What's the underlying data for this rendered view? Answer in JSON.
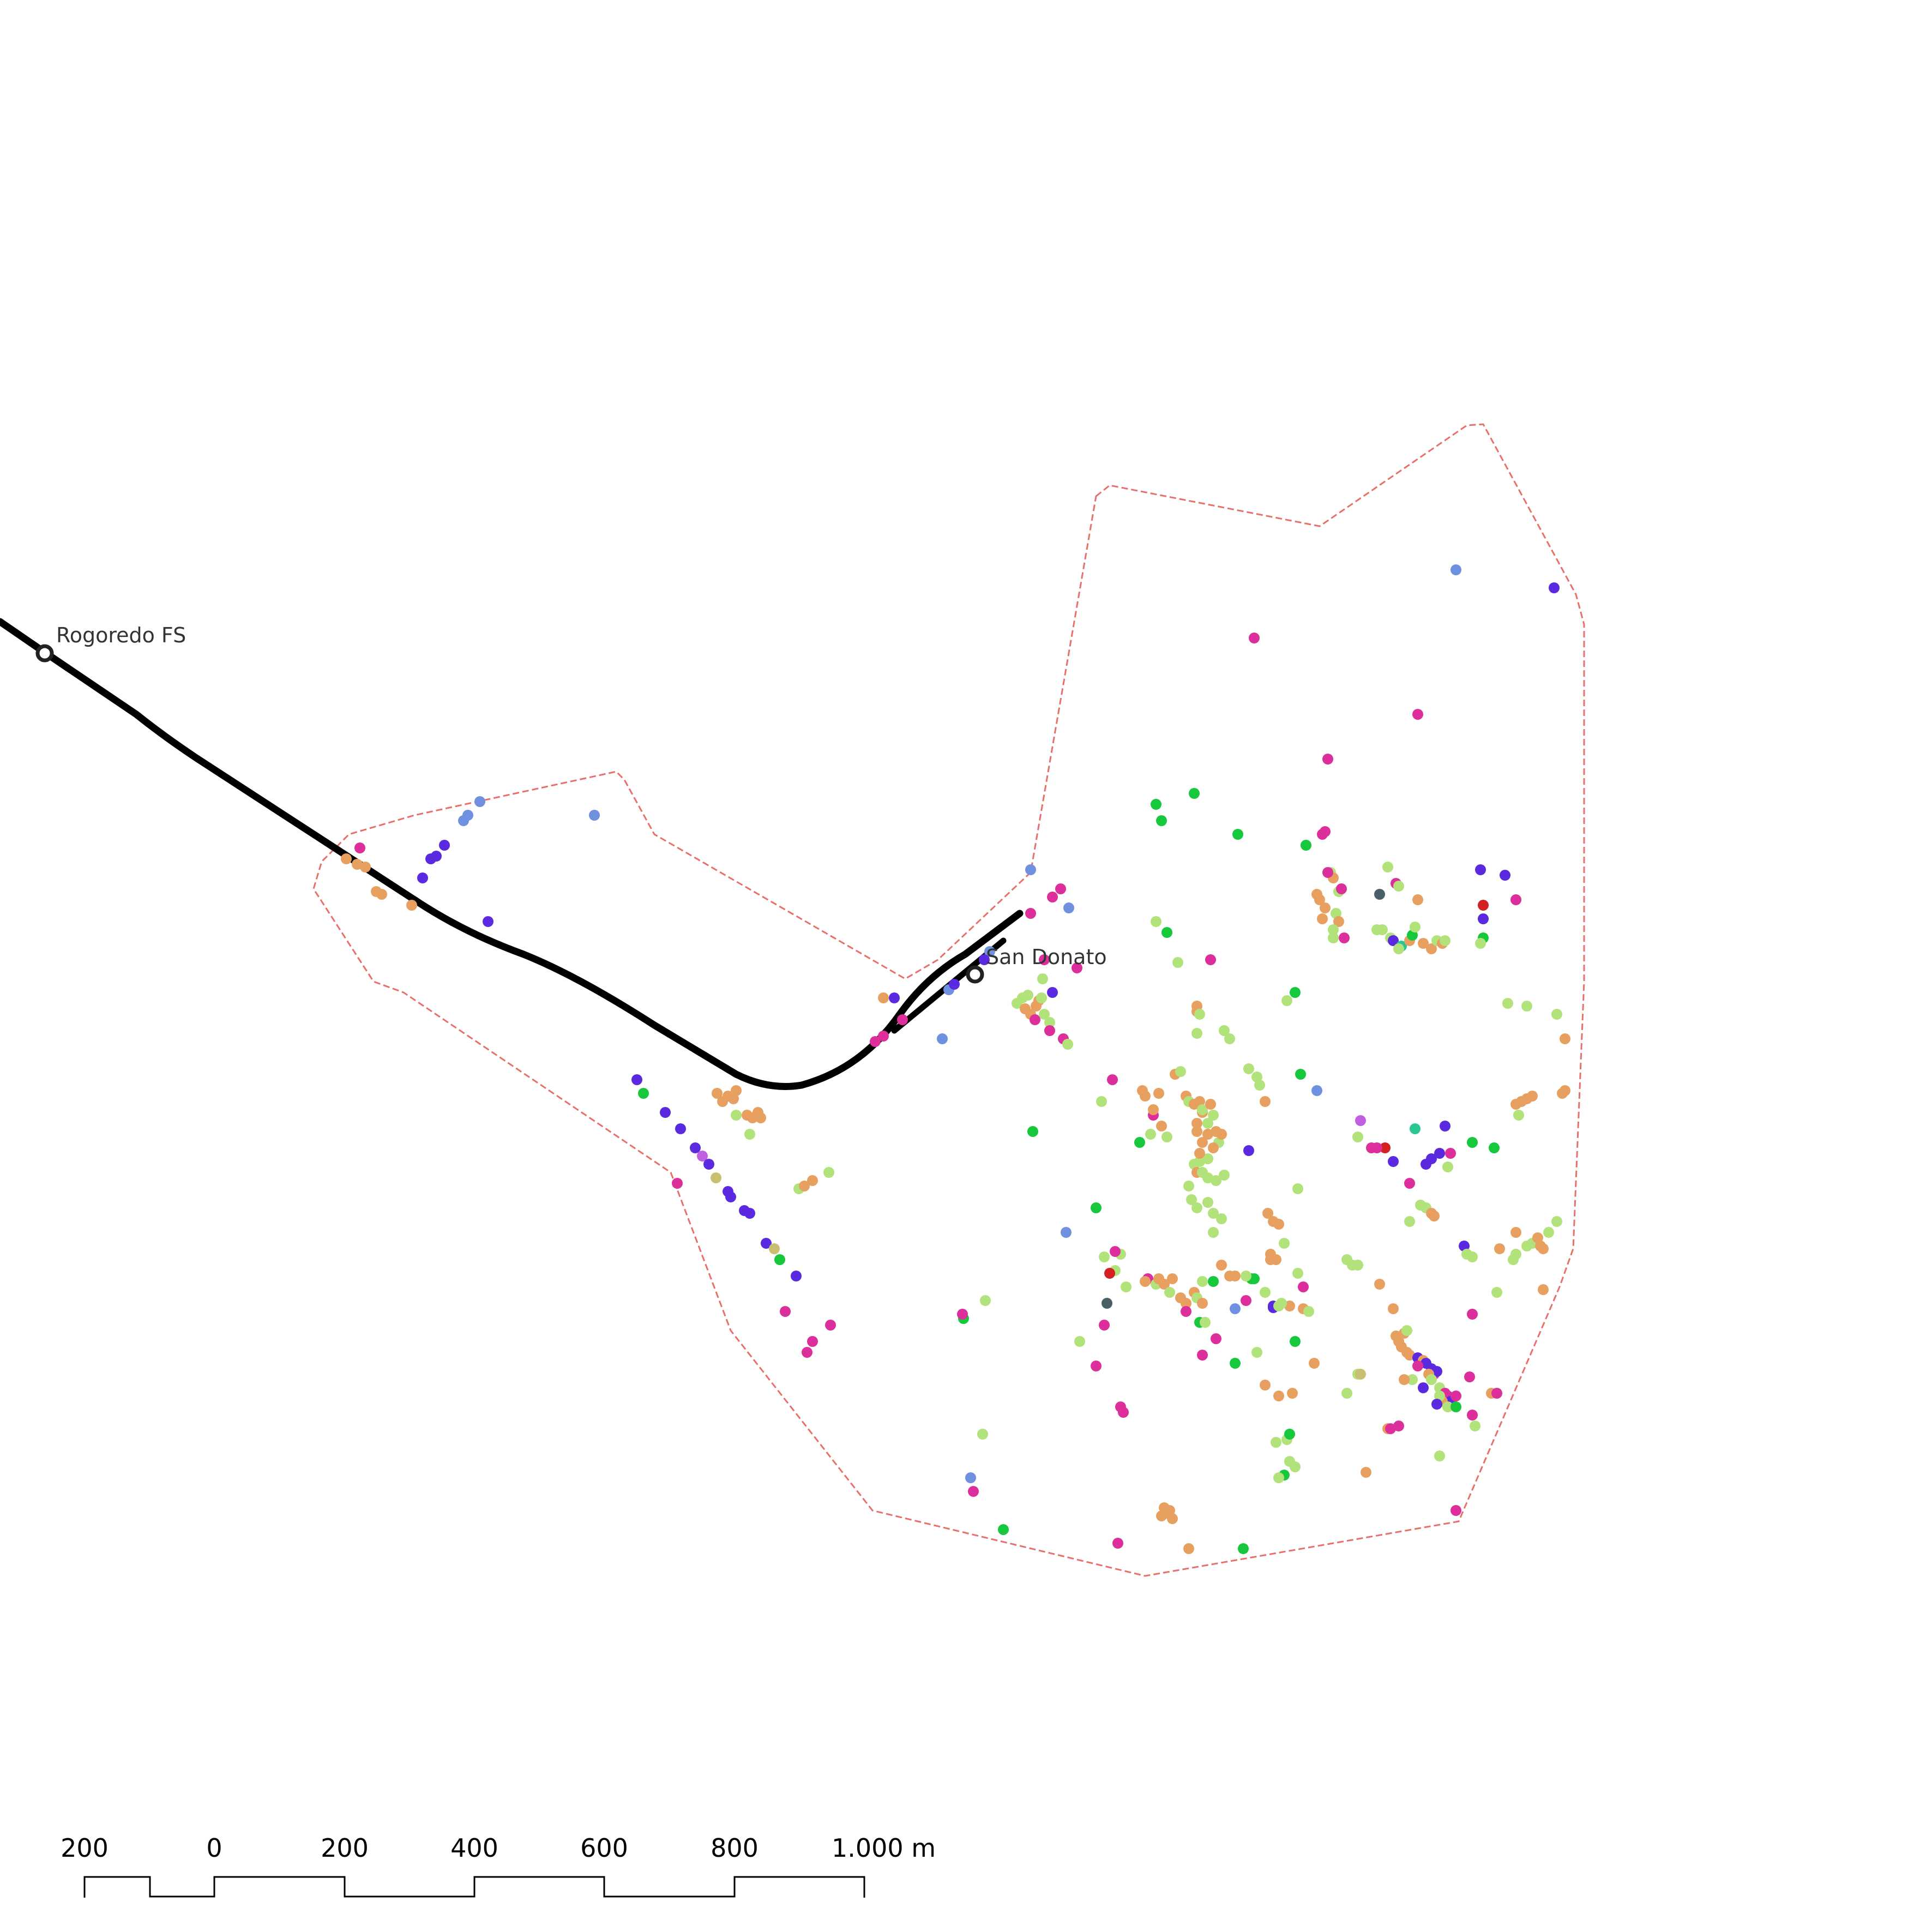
{
  "map": {
    "stations": [
      {
        "name": "Rogoredo FS"
      },
      {
        "name": "San Donato"
      }
    ],
    "line_color": "#000000",
    "boundary_color": "#e8706a",
    "poi_colors": {
      "light_green": "#b2e27a",
      "orange": "#e8a060",
      "magenta": "#dd2f9c",
      "purple": "#5b2ae0",
      "blue": "#7090e0",
      "green": "#18c83c",
      "red": "#d42020",
      "teal": "#2ac890",
      "dark_slate": "#4a6068",
      "violet": "#c060e0",
      "olive": "#c8c070"
    }
  },
  "scale_bar": {
    "labels": [
      "200",
      "0",
      "200",
      "400",
      "600",
      "800",
      "1.000 m"
    ]
  }
}
